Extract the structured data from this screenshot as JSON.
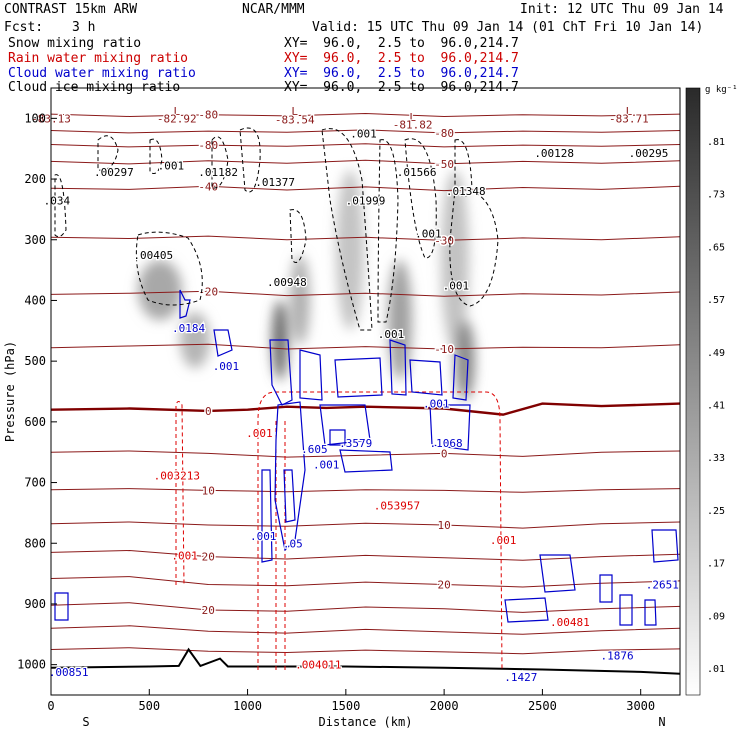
{
  "header": {
    "model": "CONTRAST 15km ARW",
    "center": "NCAR/MMM",
    "init": "Init: 12 UTC Thu 09 Jan 14",
    "fcst_label": "Fcst:",
    "fcst_value": "3 h",
    "valid": "Valid: 15 UTC Thu 09 Jan 14 (01 ChT Fri 10 Jan 14)"
  },
  "legend": [
    {
      "name": "Snow mixing ratio",
      "xy": "XY=  96.0,  2.5 to  96.0,214.7",
      "color": "#000000"
    },
    {
      "name": "Rain water mixing ratio",
      "xy": "XY=  96.0,  2.5 to  96.0,214.7",
      "color": "#cc0000"
    },
    {
      "name": "Cloud water mixing ratio",
      "xy": "XY=  96.0,  2.5 to  96.0,214.7",
      "color": "#0000cc"
    },
    {
      "name": "Cloud ice mixing ratio",
      "xy": "XY=  96.0,  2.5 to  96.0,214.7",
      "color": "#000000"
    }
  ],
  "colors": {
    "temperature": "#8b1a1a",
    "zero_isotherm": "#800000",
    "rain": "#dd0000",
    "cloud_water": "#0000cc",
    "snow": "#000000",
    "terrain": "#000000"
  },
  "chart_data": {
    "type": "cross-section",
    "xlabel": "Distance (km)",
    "ylabel": "Pressure (hPa)",
    "xlim": [
      0,
      3200
    ],
    "ylim": [
      1050,
      50
    ],
    "x_ticks": [
      "0",
      "500",
      "1000",
      "1500",
      "2000",
      "2500",
      "3000"
    ],
    "y_ticks": [
      "100",
      "200",
      "300",
      "400",
      "500",
      "600",
      "700",
      "800",
      "900",
      "1000"
    ],
    "end_labels": {
      "left": "S",
      "right": "N"
    },
    "colorbar": {
      "unit": "g kg⁻¹",
      "labels": [
        ".01",
        ".09",
        ".17",
        ".25",
        ".33",
        ".41",
        ".49",
        ".57",
        ".65",
        ".73",
        ".81"
      ]
    },
    "temperature_lines": [
      {
        "label": "-80",
        "points": [
          [
            0,
            93
          ],
          [
            400,
            97
          ],
          [
            800,
            94
          ],
          [
            1200,
            96
          ],
          [
            1600,
            92
          ],
          [
            2000,
            97
          ],
          [
            2400,
            94
          ],
          [
            2800,
            96
          ],
          [
            3200,
            93
          ]
        ]
      },
      {
        "label": "-80",
        "points": [
          [
            0,
            120
          ],
          [
            400,
            124
          ],
          [
            800,
            121
          ],
          [
            1200,
            123
          ],
          [
            1600,
            119
          ],
          [
            2000,
            124
          ],
          [
            2400,
            121
          ],
          [
            2800,
            123
          ],
          [
            3200,
            120
          ]
        ]
      },
      {
        "label": "-80",
        "points": [
          [
            0,
            143
          ],
          [
            400,
            147
          ],
          [
            800,
            144
          ],
          [
            1200,
            146
          ],
          [
            1600,
            142
          ],
          [
            2000,
            147
          ],
          [
            2400,
            144
          ],
          [
            2800,
            146
          ],
          [
            3200,
            143
          ]
        ]
      },
      {
        "label": "-50",
        "points": [
          [
            0,
            171
          ],
          [
            400,
            175
          ],
          [
            800,
            170
          ],
          [
            1200,
            174
          ],
          [
            1600,
            169
          ],
          [
            2000,
            175
          ],
          [
            2400,
            171
          ],
          [
            2800,
            174
          ],
          [
            3200,
            170
          ]
        ]
      },
      {
        "label": "-40",
        "points": [
          [
            0,
            215
          ],
          [
            400,
            217
          ],
          [
            800,
            212
          ],
          [
            1200,
            218
          ],
          [
            1600,
            213
          ],
          [
            2000,
            219
          ],
          [
            2400,
            214
          ],
          [
            2800,
            217
          ],
          [
            3200,
            212
          ]
        ]
      },
      {
        "label": "-30",
        "points": [
          [
            0,
            296
          ],
          [
            400,
            298
          ],
          [
            800,
            294
          ],
          [
            1200,
            300
          ],
          [
            1600,
            296
          ],
          [
            2000,
            301
          ],
          [
            2400,
            297
          ],
          [
            2800,
            300
          ],
          [
            3200,
            295
          ]
        ]
      },
      {
        "label": "-20",
        "points": [
          [
            0,
            390
          ],
          [
            400,
            388
          ],
          [
            800,
            385
          ],
          [
            1200,
            392
          ],
          [
            1600,
            388
          ],
          [
            2000,
            393
          ],
          [
            2400,
            389
          ],
          [
            2800,
            391
          ],
          [
            3200,
            386
          ]
        ]
      },
      {
        "label": "-10",
        "points": [
          [
            0,
            478
          ],
          [
            400,
            475
          ],
          [
            800,
            472
          ],
          [
            1200,
            480
          ],
          [
            1600,
            476
          ],
          [
            2000,
            480
          ],
          [
            2400,
            477
          ],
          [
            2800,
            478
          ],
          [
            3200,
            473
          ]
        ]
      },
      {
        "label": "0",
        "points": [
          [
            0,
            580
          ],
          [
            400,
            578
          ],
          [
            800,
            582
          ],
          [
            1000,
            580
          ],
          [
            1200,
            575
          ],
          [
            1400,
            577
          ],
          [
            1600,
            575
          ],
          [
            2000,
            578
          ],
          [
            2300,
            588
          ],
          [
            2500,
            570
          ],
          [
            2800,
            574
          ],
          [
            3200,
            570
          ]
        ]
      },
      {
        "label": "0",
        "points": [
          [
            0,
            650
          ],
          [
            400,
            648
          ],
          [
            800,
            652
          ],
          [
            1200,
            658
          ],
          [
            1600,
            655
          ],
          [
            2000,
            652
          ],
          [
            2400,
            657
          ],
          [
            2800,
            650
          ],
          [
            3200,
            648
          ]
        ]
      },
      {
        "label": "10",
        "points": [
          [
            0,
            712
          ],
          [
            400,
            710
          ],
          [
            800,
            713
          ],
          [
            1200,
            715
          ],
          [
            1600,
            712
          ],
          [
            2000,
            713
          ],
          [
            2400,
            716
          ],
          [
            2800,
            712
          ],
          [
            3200,
            710
          ]
        ]
      },
      {
        "label": "10",
        "points": [
          [
            0,
            768
          ],
          [
            400,
            765
          ],
          [
            800,
            770
          ],
          [
            1200,
            772
          ],
          [
            1600,
            767
          ],
          [
            2000,
            770
          ],
          [
            2400,
            775
          ],
          [
            2800,
            768
          ],
          [
            3200,
            765
          ]
        ]
      },
      {
        "label": "20",
        "points": [
          [
            0,
            815
          ],
          [
            400,
            812
          ],
          [
            800,
            822
          ],
          [
            1200,
            826
          ],
          [
            1600,
            820
          ],
          [
            2000,
            824
          ],
          [
            2400,
            828
          ],
          [
            2800,
            822
          ],
          [
            3200,
            818
          ]
        ]
      },
      {
        "label": "20",
        "points": [
          [
            0,
            858
          ],
          [
            400,
            855
          ],
          [
            800,
            868
          ],
          [
            1200,
            870
          ],
          [
            1600,
            864
          ],
          [
            2000,
            868
          ],
          [
            2400,
            872
          ],
          [
            2800,
            866
          ],
          [
            3200,
            862
          ]
        ]
      },
      {
        "label": "20",
        "points": [
          [
            0,
            902
          ],
          [
            400,
            898
          ],
          [
            800,
            910
          ],
          [
            1200,
            912
          ],
          [
            1600,
            905
          ],
          [
            2000,
            908
          ],
          [
            2400,
            914
          ],
          [
            2800,
            908
          ],
          [
            3200,
            904
          ]
        ]
      },
      {
        "label": "",
        "points": [
          [
            0,
            940
          ],
          [
            400,
            936
          ],
          [
            800,
            945
          ],
          [
            1200,
            948
          ],
          [
            1600,
            942
          ],
          [
            2000,
            946
          ],
          [
            2400,
            950
          ],
          [
            2800,
            944
          ],
          [
            3200,
            940
          ]
        ]
      },
      {
        "label": "",
        "points": [
          [
            0,
            975
          ],
          [
            400,
            972
          ],
          [
            800,
            978
          ],
          [
            1200,
            980
          ],
          [
            1600,
            976
          ],
          [
            2000,
            979
          ],
          [
            2400,
            982
          ],
          [
            2800,
            976
          ],
          [
            3200,
            974
          ]
        ]
      }
    ],
    "terrain": [
      [
        0,
        1005
      ],
      [
        500,
        1003
      ],
      [
        650,
        1002
      ],
      [
        700,
        975
      ],
      [
        760,
        1002
      ],
      [
        860,
        990
      ],
      [
        900,
        1003
      ],
      [
        1500,
        1003
      ],
      [
        2000,
        1005
      ],
      [
        2500,
        1008
      ],
      [
        3000,
        1012
      ],
      [
        3200,
        1015
      ]
    ],
    "annotations": [
      {
        "text": "-83.13",
        "x": 0,
        "p": 100,
        "color": "#8b1a1a"
      },
      {
        "text": "L",
        "x": 640,
        "p": 88,
        "color": "#8b1a1a"
      },
      {
        "text": "-82.92",
        "x": 640,
        "p": 100,
        "color": "#8b1a1a"
      },
      {
        "text": "L",
        "x": 1240,
        "p": 88,
        "color": "#8b1a1a"
      },
      {
        "text": "-83.54",
        "x": 1240,
        "p": 102,
        "color": "#8b1a1a"
      },
      {
        "text": "L",
        "x": 1840,
        "p": 98,
        "color": "#8b1a1a"
      },
      {
        "text": "-81.82",
        "x": 1840,
        "p": 110,
        "color": "#8b1a1a"
      },
      {
        "text": "L",
        "x": 2940,
        "p": 88,
        "color": "#8b1a1a"
      },
      {
        "text": "-83.71",
        "x": 2940,
        "p": 100,
        "color": "#8b1a1a"
      },
      {
        "text": ".001",
        "x": 1590,
        "p": 125,
        "color": "#000000"
      },
      {
        "text": ".00297",
        "x": 320,
        "p": 188,
        "color": "#000000"
      },
      {
        "text": ".001",
        "x": 610,
        "p": 178,
        "color": "#000000"
      },
      {
        "text": ".01182",
        "x": 850,
        "p": 188,
        "color": "#000000"
      },
      {
        "text": ".01377",
        "x": 1140,
        "p": 205,
        "color": "#000000"
      },
      {
        "text": ".01566",
        "x": 1860,
        "p": 188,
        "color": "#000000"
      },
      {
        "text": ".01999",
        "x": 1600,
        "p": 235,
        "color": "#000000"
      },
      {
        "text": ".01348",
        "x": 2110,
        "p": 220,
        "color": "#000000"
      },
      {
        "text": ".00128",
        "x": 2560,
        "p": 157,
        "color": "#000000"
      },
      {
        "text": ".00295",
        "x": 3040,
        "p": 157,
        "color": "#000000"
      },
      {
        "text": ".034",
        "x": 30,
        "p": 235,
        "color": "#000000"
      },
      {
        "text": ".00405",
        "x": 520,
        "p": 325,
        "color": "#000000"
      },
      {
        "text": ".00948",
        "x": 1200,
        "p": 370,
        "color": "#000000"
      },
      {
        "text": ".001",
        "x": 1920,
        "p": 290,
        "color": "#000000"
      },
      {
        "text": ".001",
        "x": 2060,
        "p": 375,
        "color": "#000000"
      },
      {
        "text": ".001",
        "x": 1730,
        "p": 455,
        "color": "#000000"
      },
      {
        "text": ".0184",
        "x": 700,
        "p": 445,
        "color": "#0000cc"
      },
      {
        "text": ".001",
        "x": 890,
        "p": 508,
        "color": "#0000cc"
      },
      {
        "text": ".001",
        "x": 1960,
        "p": 570,
        "color": "#0000cc"
      },
      {
        "text": ".605",
        "x": 1340,
        "p": 645,
        "color": "#0000cc"
      },
      {
        "text": ".3579",
        "x": 1550,
        "p": 635,
        "color": "#0000cc"
      },
      {
        "text": ".1068",
        "x": 2010,
        "p": 635,
        "color": "#0000cc"
      },
      {
        "text": ".001",
        "x": 1400,
        "p": 670,
        "color": "#0000cc"
      },
      {
        "text": ".001",
        "x": 1080,
        "p": 788,
        "color": "#0000cc"
      },
      {
        "text": ".05",
        "x": 1230,
        "p": 800,
        "color": "#0000cc"
      },
      {
        "text": ".001",
        "x": 1060,
        "p": 618,
        "color": "#dd0000"
      },
      {
        "text": ".003213",
        "x": 640,
        "p": 688,
        "color": "#dd0000"
      },
      {
        "text": ".053957",
        "x": 1760,
        "p": 738,
        "color": "#dd0000"
      },
      {
        "text": ".001",
        "x": 680,
        "p": 820,
        "color": "#dd0000"
      },
      {
        "text": ".001",
        "x": 2300,
        "p": 795,
        "color": "#dd0000"
      },
      {
        "text": ".004011",
        "x": 1360,
        "p": 1000,
        "color": "#dd0000"
      },
      {
        "text": ".00481",
        "x": 2640,
        "p": 930,
        "color": "#dd0000"
      },
      {
        "text": ".2651",
        "x": 3110,
        "p": 868,
        "color": "#0000cc"
      },
      {
        "text": ".1876",
        "x": 2880,
        "p": 985,
        "color": "#0000cc"
      },
      {
        "text": ".1427",
        "x": 2390,
        "p": 1020,
        "color": "#0000cc"
      },
      {
        "text": ".00851",
        "x": 90,
        "p": 1012,
        "color": "#0000cc"
      }
    ]
  }
}
